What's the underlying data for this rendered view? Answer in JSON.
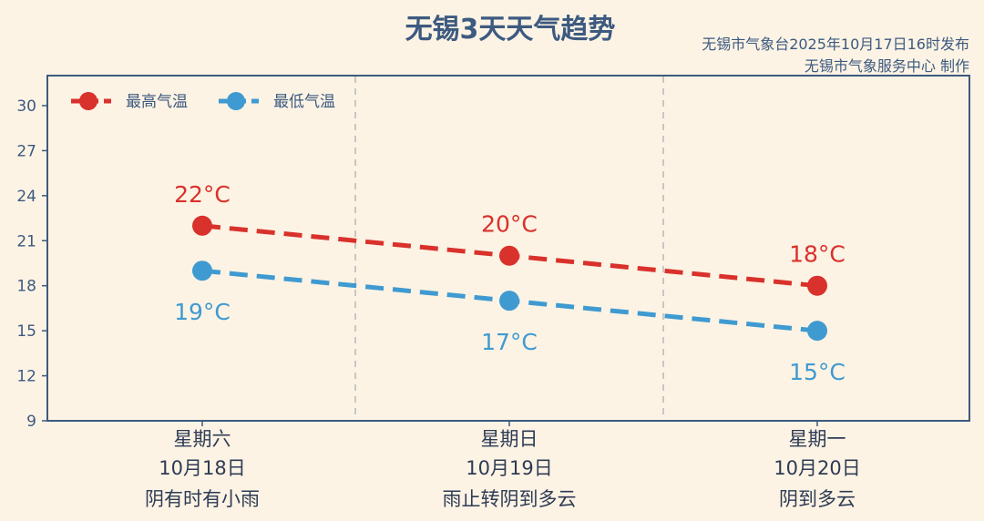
{
  "title": "无锡3天天气趋势",
  "source_line1": "无锡市气象台2025年10月17日16时发布",
  "source_line2": "无锡市气象服务中心 制作",
  "colors": {
    "high": "#d9312b",
    "low": "#3f9ad1",
    "axis": "#3d5a80",
    "background": "#fcf3e4",
    "divider": "#b8b8b8"
  },
  "chart_data": {
    "type": "line",
    "title": "无锡3天天气趋势",
    "ylim": [
      9,
      32
    ],
    "yticks": [
      "9",
      "12",
      "15",
      "18",
      "21",
      "24",
      "27",
      "30"
    ],
    "categories": [
      {
        "weekday": "星期六",
        "date": "10月18日",
        "weather": "阴有时有小雨"
      },
      {
        "weekday": "星期日",
        "date": "10月19日",
        "weather": "雨止转阴到多云"
      },
      {
        "weekday": "星期一",
        "date": "10月20日",
        "weather": "阴到多云"
      }
    ],
    "series": [
      {
        "name": "最高气温",
        "values": [
          22,
          20,
          18
        ],
        "labels": [
          "22°C",
          "20°C",
          "18°C"
        ],
        "color": "#d9312b"
      },
      {
        "name": "最低气温",
        "values": [
          19,
          17,
          15
        ],
        "labels": [
          "19°C",
          "17°C",
          "15°C"
        ],
        "color": "#3f9ad1"
      }
    ],
    "legend": "top-left",
    "grid": false
  }
}
